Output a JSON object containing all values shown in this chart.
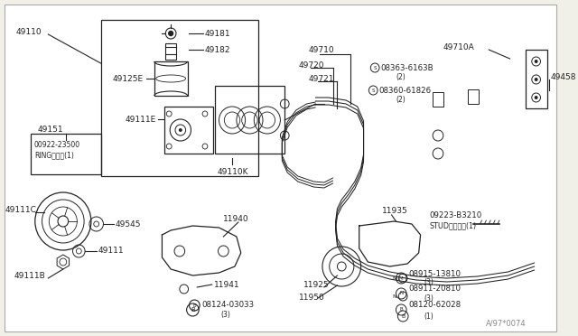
{
  "bg_color": "#f0f0e8",
  "watermark": "A/97*0074",
  "dark": "#222222",
  "gray": "#666666",
  "parts_left": [
    "49110",
    "49181",
    "49182",
    "49125E",
    "49151",
    "49111E",
    "49110K",
    "49111C",
    "49545",
    "49111",
    "49111B"
  ],
  "parts_right_top": [
    "49710",
    "49720",
    "49721",
    "49710A",
    "08363-6163B",
    "(2)",
    "08360-61826",
    "(2)",
    "49458"
  ],
  "parts_bottom_left": [
    "11940",
    "11941",
    "08124-03033",
    "(3)"
  ],
  "parts_bottom_right": [
    "11935",
    "09223-B3210",
    "STUDスタッド(1)",
    "08915-13810",
    "(3)",
    "08911-20810",
    "(3)",
    "08120-62028",
    "(1)",
    "11925",
    "11950"
  ],
  "box_inner": [
    "00922-23500",
    "RINGリング(1)"
  ]
}
